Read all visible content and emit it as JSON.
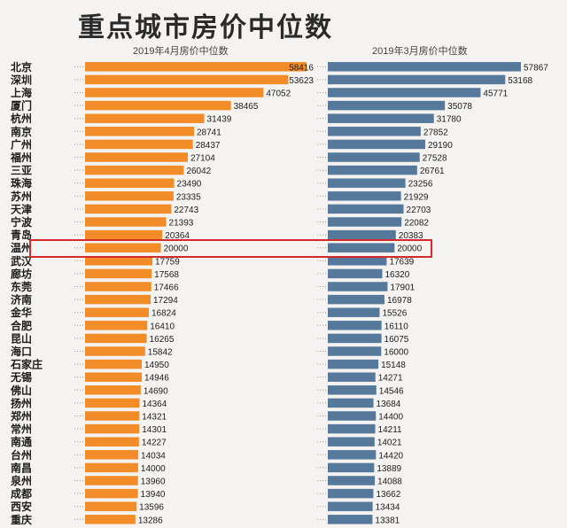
{
  "chart_data": {
    "type": "bar",
    "title": "重点城市房价中位数",
    "highlight_category": "温州",
    "colors": {
      "apr": "#f28c28",
      "mar": "#56799b",
      "highlight_box": "#d42a2a"
    },
    "categories": [
      "北京",
      "深圳",
      "上海",
      "厦门",
      "杭州",
      "南京",
      "广州",
      "福州",
      "三亚",
      "珠海",
      "苏州",
      "天津",
      "宁波",
      "青岛",
      "温州",
      "武汉",
      "廊坊",
      "东莞",
      "济南",
      "金华",
      "合肥",
      "昆山",
      "海口",
      "石家庄",
      "无锡",
      "佛山",
      "扬州",
      "郑州",
      "常州",
      "南通",
      "台州",
      "南昌",
      "泉州",
      "成都",
      "西安",
      "重庆"
    ],
    "series": [
      {
        "name": "2019年4月房价中位数",
        "values": [
          58416,
          53623,
          47052,
          38465,
          31439,
          28741,
          28437,
          27104,
          26042,
          23490,
          23335,
          22743,
          21393,
          20364,
          20000,
          17759,
          17568,
          17466,
          17294,
          16824,
          16410,
          16265,
          15842,
          14950,
          14946,
          14690,
          14364,
          14321,
          14301,
          14227,
          14034,
          14000,
          13960,
          13940,
          13596,
          13286
        ]
      },
      {
        "name": "2019年3月房价中位数",
        "values": [
          57867,
          53168,
          45771,
          35078,
          31780,
          27852,
          29190,
          27528,
          26761,
          23256,
          21929,
          22703,
          22082,
          20383,
          20000,
          17639,
          16320,
          17901,
          16978,
          15526,
          16110,
          16075,
          16000,
          15148,
          14271,
          14546,
          13684,
          14400,
          14211,
          14021,
          14420,
          13889,
          14088,
          13662,
          13434,
          13381
        ]
      }
    ],
    "value_labels": {
      "apr": [
        "58416",
        "53623",
        "47052",
        "38465",
        "31439",
        "28741",
        "28437",
        "27104",
        "26042",
        "23490",
        "23335",
        "22743",
        "21393",
        "20364",
        "20000",
        "17759",
        "17568",
        "17466",
        "17294",
        "16824",
        "16410",
        "16265",
        "15842",
        "14950",
        "14946",
        "14690",
        "14364",
        "14321",
        "14301",
        "14227",
        "14034",
        "14000",
        "13960",
        "13940",
        "13596",
        "13286"
      ],
      "mar": [
        "57867",
        "53168",
        "45771",
        "35078",
        "31780",
        "27852",
        "29190",
        "27528",
        "26761",
        "23256",
        "21929",
        "22703",
        "22082",
        "20383",
        "20000",
        "17639",
        "16320",
        "17901",
        "16978",
        "15526",
        "16110",
        "16075",
        "16000",
        "15148",
        "14271",
        "14546",
        "13684",
        "14400",
        "14211",
        "14021",
        "14420",
        "13889",
        "14088",
        "13662",
        "13434",
        "13381"
      ]
    }
  }
}
